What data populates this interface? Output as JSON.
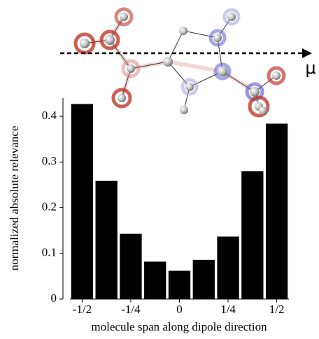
{
  "chart_data": {
    "type": "bar",
    "annotation": "μ",
    "x_label": "molecule span along dipole direction",
    "y_label": "normalized absolute relevance",
    "x": [
      -0.5,
      -0.375,
      -0.25,
      -0.125,
      0,
      0.125,
      0.25,
      0.375,
      0.5
    ],
    "values": [
      0.427,
      0.259,
      0.143,
      0.082,
      0.062,
      0.086,
      0.137,
      0.28,
      0.384
    ],
    "color": "#000000",
    "xlim": [
      -0.5625,
      0.5625
    ],
    "xticks": [
      {
        "value": -0.5,
        "label": "-1/2"
      },
      {
        "value": -0.25,
        "label": "-1/4"
      },
      0,
      {
        "value": 0.25,
        "label": "1/4"
      },
      {
        "value": 0.5,
        "label": "1/2"
      }
    ],
    "ylim": [
      0,
      0.44
    ],
    "yticks": [
      0,
      0.1,
      0.2,
      0.3,
      0.4
    ]
  }
}
